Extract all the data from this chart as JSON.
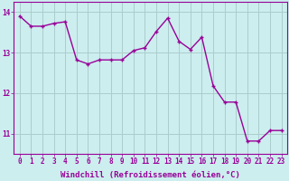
{
  "x": [
    0,
    1,
    2,
    3,
    4,
    5,
    6,
    7,
    8,
    9,
    10,
    11,
    12,
    13,
    14,
    15,
    16,
    17,
    18,
    19,
    20,
    21,
    22,
    23
  ],
  "y": [
    13.9,
    13.65,
    13.65,
    13.72,
    13.76,
    12.82,
    12.72,
    12.82,
    12.82,
    12.82,
    13.05,
    13.12,
    13.52,
    13.85,
    13.28,
    13.08,
    13.38,
    12.18,
    11.78,
    11.78,
    10.82,
    10.82,
    11.08,
    11.08
  ],
  "line_color": "#990099",
  "marker_color": "#990099",
  "bg_color": "#cceeee",
  "grid_color": "#aacccc",
  "axis_color": "#990099",
  "xlabel": "Windchill (Refroidissement éolien,°C)",
  "yticks": [
    11,
    12,
    13,
    14
  ],
  "ylim": [
    10.5,
    14.25
  ],
  "xlim": [
    -0.5,
    23.5
  ],
  "xticks": [
    0,
    1,
    2,
    3,
    4,
    5,
    6,
    7,
    8,
    9,
    10,
    11,
    12,
    13,
    14,
    15,
    16,
    17,
    18,
    19,
    20,
    21,
    22,
    23
  ],
  "label_fontsize": 6.5,
  "tick_fontsize": 5.5,
  "line_width": 1.0,
  "marker_size": 3
}
